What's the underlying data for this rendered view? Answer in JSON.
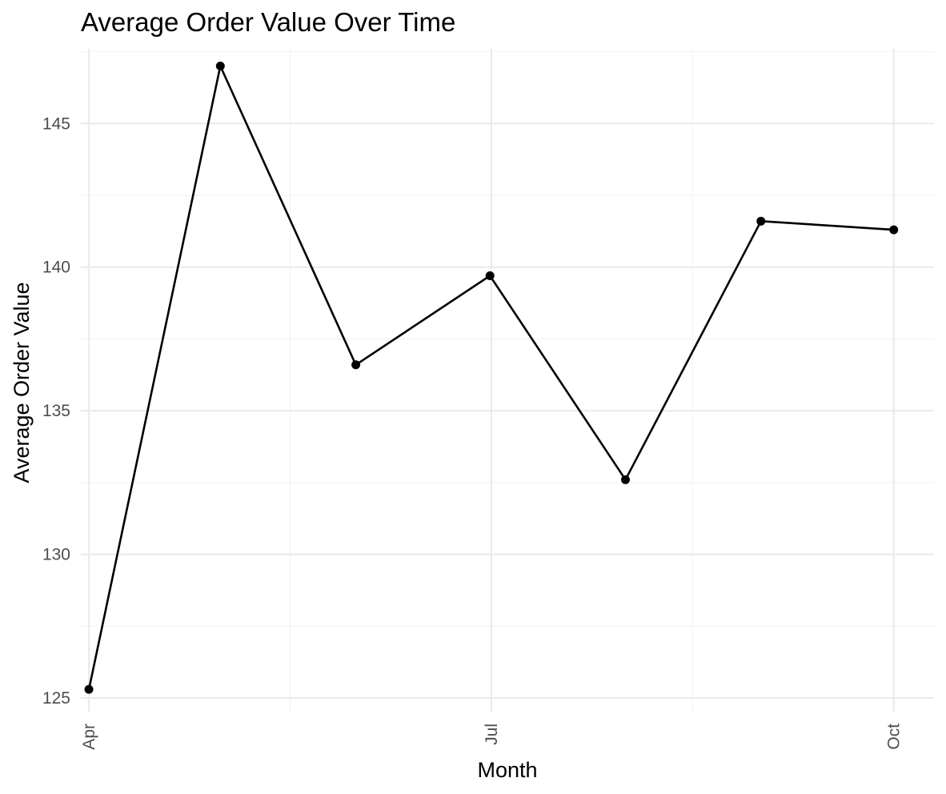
{
  "chart_data": {
    "type": "line",
    "title": "Average Order Value Over Time",
    "xlabel": "Month",
    "ylabel": "Average Order Value",
    "x_ticks": [
      {
        "label": "Apr",
        "month": 0
      },
      {
        "label": "Jul",
        "month": 3
      },
      {
        "label": "Oct",
        "month": 6
      }
    ],
    "y_ticks": [
      125,
      130,
      135,
      140,
      145
    ],
    "xlim": [
      -0.06,
      6.3
    ],
    "ylim": [
      124.5,
      147.6
    ],
    "grid": true,
    "series": [
      {
        "name": "Average Order Value",
        "color": "#000000",
        "points": [
          {
            "month": 0.0,
            "value": 125.3
          },
          {
            "month": 0.98,
            "value": 147.0
          },
          {
            "month": 1.99,
            "value": 136.6
          },
          {
            "month": 2.99,
            "value": 139.7
          },
          {
            "month": 4.0,
            "value": 132.6
          },
          {
            "month": 5.01,
            "value": 141.6
          },
          {
            "month": 6.0,
            "value": 141.3
          }
        ]
      }
    ],
    "colors": {
      "grid_major": "#ebebeb",
      "grid_minor": "#f2f2f2",
      "line": "#000000",
      "tick_text": "#4d4d4d"
    }
  }
}
